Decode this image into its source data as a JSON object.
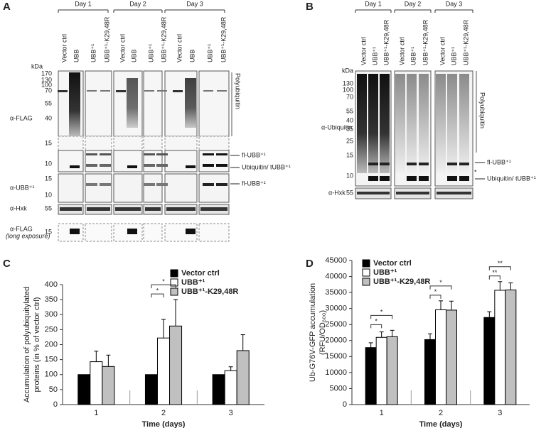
{
  "panel_a": {
    "letter": "A",
    "days": [
      "Day 1",
      "Day 2",
      "Day 3"
    ],
    "lanes": [
      "Vector ctrl",
      "UBB",
      "UBB⁺¹",
      "UBB⁺¹-K29,48R",
      "Vector ctrl",
      "UBB",
      "UBB⁺¹",
      "UBB⁺¹-K29,48R",
      "Vector ctrl",
      "UBB",
      "UBB⁺¹",
      "UBB⁺¹-K29,48R"
    ],
    "kda_unit": "kDa",
    "flag_markers": [
      "170",
      "130",
      "100",
      "70",
      "55",
      "40",
      "15",
      "10"
    ],
    "ubb_markers": [
      "15",
      "10"
    ],
    "hxk_marker": "55",
    "long_marker": "15",
    "row_labels": [
      "α-FLAG",
      "α-UBB⁺¹",
      "α-Hxk",
      "α-FLAG"
    ],
    "long_note": "(long exposure)",
    "right_labels": [
      "Polyubiquitin",
      "fl-UBB⁺¹",
      "Ubiquitin/ tUBB⁺¹",
      "fl-UBB⁺¹"
    ]
  },
  "panel_b": {
    "letter": "B",
    "days": [
      "Day 1",
      "Day 2",
      "Day 3"
    ],
    "lanes": [
      "Vector ctrl",
      "UBB⁺¹",
      "UBB⁺¹-K29,48R",
      "Vector ctrl",
      "UBB⁺¹",
      "UBB⁺¹-K29,48R",
      "Vector ctrl",
      "UBB⁺¹",
      "UBB⁺¹-K29,48R"
    ],
    "kda_unit": "kDa",
    "markers": [
      "130",
      "100",
      "70",
      "55",
      "40",
      "35",
      "25",
      "15",
      "10"
    ],
    "hxk_marker": "55",
    "row_labels": [
      "α-Ubiquitin",
      "α-Hxk"
    ],
    "right_labels": [
      "Polyubiquitin",
      "fl-UBB⁺¹",
      "*",
      "Ubiquitin/ tUBB⁺¹"
    ]
  },
  "chart_data": [
    {
      "type": "bar",
      "letter": "C",
      "ylabel": [
        "Accumulation of polyubiquitylated",
        "proteins (in % of vector ctrl)"
      ],
      "xlabel": "Time (days)",
      "categories": [
        "1",
        "2",
        "3"
      ],
      "ylim": [
        0,
        400
      ],
      "yticks": [
        0,
        50,
        100,
        150,
        200,
        250,
        300,
        350,
        400
      ],
      "series": [
        {
          "name": "Vector ctrl",
          "color": "#000000",
          "values": [
            100,
            100,
            100
          ],
          "errors": [
            0,
            0,
            0
          ]
        },
        {
          "name": "UBB⁺¹",
          "color": "#ffffff",
          "values": [
            143,
            222,
            113
          ],
          "errors": [
            35,
            62,
            13
          ]
        },
        {
          "name": "UBB⁺¹-K29,48R",
          "color": "#c0c0c0",
          "values": [
            127,
            262,
            180
          ],
          "errors": [
            38,
            88,
            53
          ]
        }
      ],
      "annotations": [
        {
          "text": "*",
          "category": "2",
          "series": "UBB⁺¹"
        },
        {
          "text": "*",
          "category": "2",
          "series": "UBB⁺¹-K29,48R"
        }
      ]
    },
    {
      "type": "bar",
      "letter": "D",
      "ylabel": [
        "Ub-G76V-GFP accumulation",
        "(RFU/OD₆₀₀)"
      ],
      "xlabel": "Time (days)",
      "categories": [
        "1",
        "2",
        "3"
      ],
      "ylim": [
        0,
        45000
      ],
      "yticks": [
        0,
        5000,
        10000,
        15000,
        20000,
        25000,
        30000,
        35000,
        40000,
        45000
      ],
      "series": [
        {
          "name": "Vector ctrl",
          "color": "#000000",
          "values": [
            17800,
            20300,
            27200
          ],
          "errors": [
            1500,
            1800,
            1800
          ]
        },
        {
          "name": "UBB⁺¹",
          "color": "#ffffff",
          "values": [
            21000,
            29600,
            35700
          ],
          "errors": [
            1700,
            2800,
            2700
          ]
        },
        {
          "name": "UBB⁺¹-K29,48R",
          "color": "#c0c0c0",
          "values": [
            21200,
            29500,
            35800
          ],
          "errors": [
            2000,
            2800,
            2200
          ]
        }
      ],
      "annotations": [
        {
          "text": "*",
          "category": "1",
          "series": "UBB⁺¹"
        },
        {
          "text": "*",
          "category": "1",
          "series": "UBB⁺¹-K29,48R"
        },
        {
          "text": "*",
          "category": "2",
          "series": "UBB⁺¹"
        },
        {
          "text": "*",
          "category": "2",
          "series": "UBB⁺¹-K29,48R"
        },
        {
          "text": "**",
          "category": "3",
          "series": "UBB⁺¹"
        },
        {
          "text": "**",
          "category": "3",
          "series": "UBB⁺¹-K29,48R"
        }
      ]
    }
  ]
}
